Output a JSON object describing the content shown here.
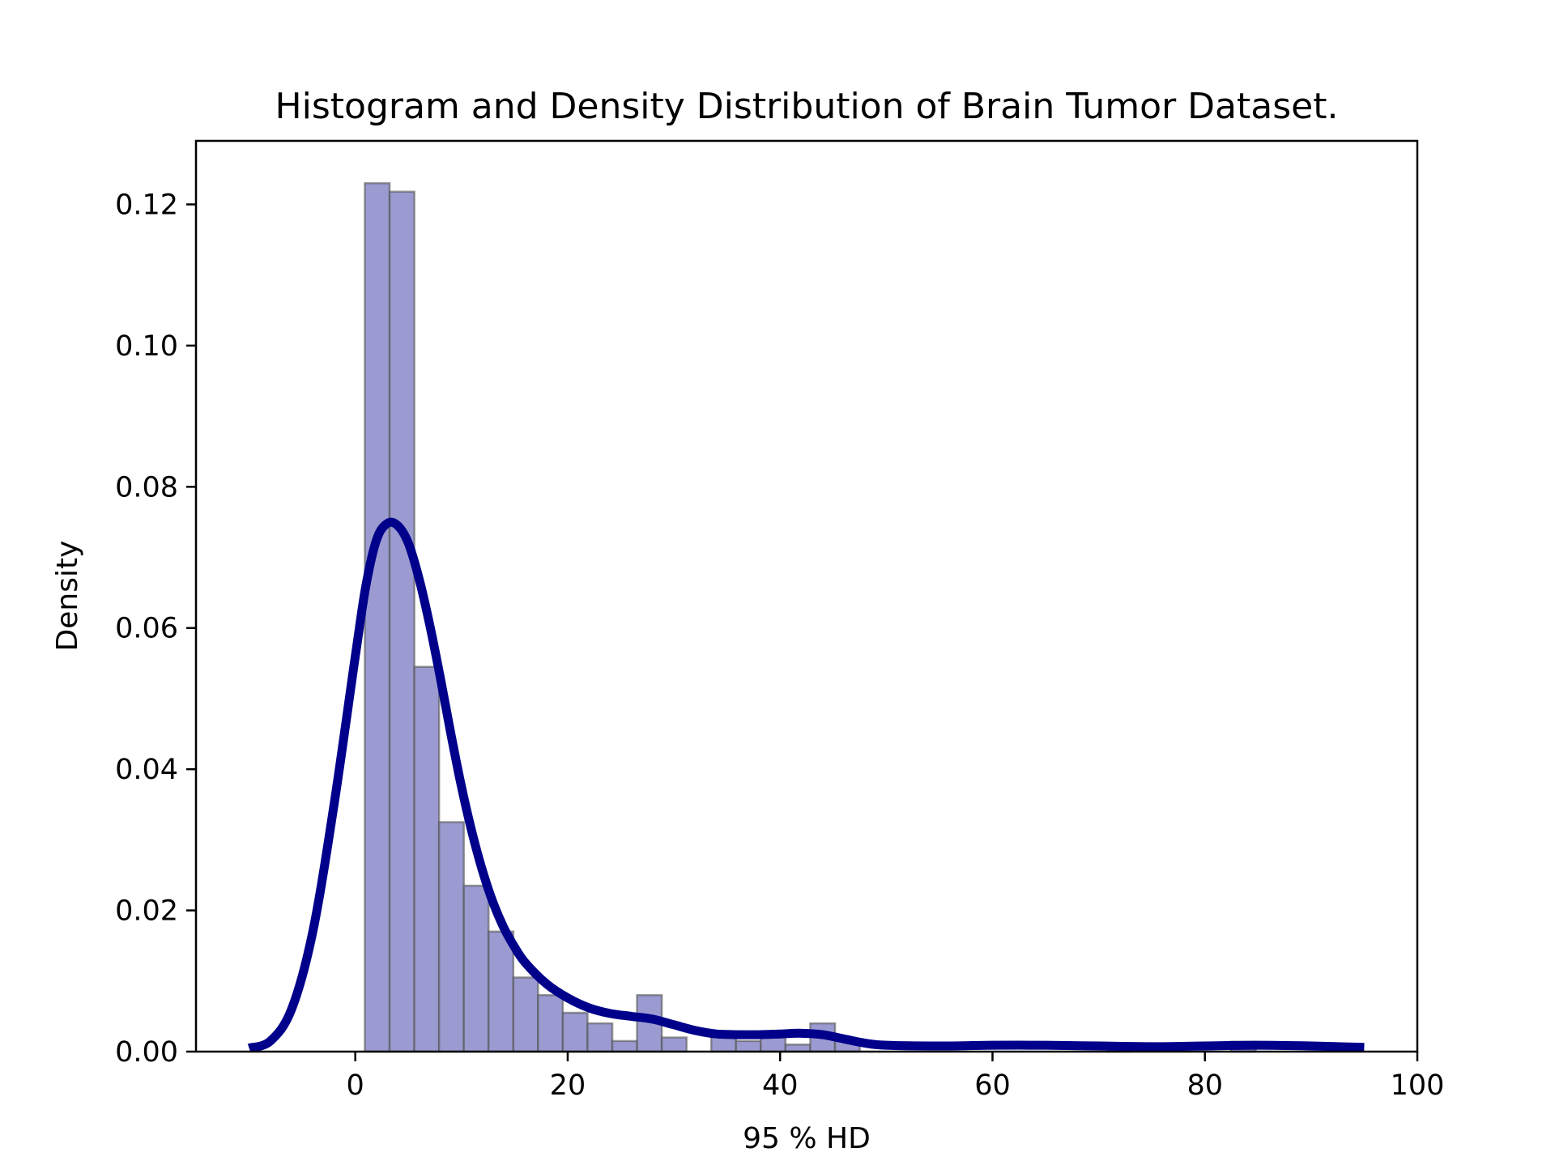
{
  "chart_data": {
    "type": "bar",
    "title": "Histogram and Density Distribution of Brain Tumor Dataset.",
    "xlabel": "95 % HD",
    "ylabel": "Density",
    "xlim": [
      -15,
      100
    ],
    "ylim": [
      0,
      0.129
    ],
    "grid": false,
    "legend": "none",
    "x_ticks": [
      0,
      20,
      40,
      60,
      80,
      100
    ],
    "x_tick_labels": [
      "0",
      "20",
      "40",
      "60",
      "80",
      "100"
    ],
    "y_ticks": [
      0,
      0.02,
      0.04,
      0.06,
      0.08,
      0.1,
      0.12
    ],
    "y_tick_labels": [
      "0.00",
      "0.02",
      "0.04",
      "0.06",
      "0.08",
      "0.10",
      "0.12"
    ],
    "histogram": {
      "bin_edges": [
        0.9,
        3.23,
        5.56,
        7.89,
        10.22,
        12.55,
        14.88,
        17.21,
        19.54,
        21.87,
        24.2,
        26.53,
        28.86,
        31.19,
        33.52,
        35.85,
        38.18,
        40.51,
        42.84,
        45.17,
        47.5,
        49.83,
        52.16,
        54.49,
        56.82,
        59.15,
        61.48,
        63.81,
        66.14,
        68.47,
        70.8,
        73.13,
        75.46,
        77.79,
        80.12,
        82.45,
        84.78,
        87.11,
        89.44,
        91.77,
        94.1
      ],
      "densities": [
        0.123,
        0.1218,
        0.0545,
        0.0325,
        0.0235,
        0.017,
        0.0105,
        0.008,
        0.0055,
        0.004,
        0.0015,
        0.008,
        0.002,
        0.0,
        0.0025,
        0.0015,
        0.002,
        0.001,
        0.004,
        0.0015,
        0.0,
        0.0,
        0.0,
        0.0,
        0.0,
        0.0,
        0.0,
        0.0,
        0.0,
        0.0,
        0.0012,
        0.0,
        0.0,
        0.0,
        0.0,
        0.0014,
        0.0,
        0.0,
        0.0,
        0.0
      ]
    },
    "density_curve": {
      "x": [
        -10,
        -8,
        -6,
        -4,
        -2,
        0,
        1,
        2,
        3,
        4,
        5,
        6,
        7,
        8,
        9,
        10,
        11,
        12,
        13,
        14,
        15,
        16,
        18,
        20,
        22,
        24,
        26,
        28,
        30,
        32,
        34,
        36,
        38,
        40,
        42,
        44,
        46,
        48,
        50,
        55,
        60,
        65,
        70,
        75,
        80,
        85,
        90,
        95
      ],
      "y": [
        0.0005,
        0.0015,
        0.006,
        0.017,
        0.035,
        0.056,
        0.066,
        0.0725,
        0.0748,
        0.0745,
        0.072,
        0.067,
        0.0605,
        0.053,
        0.045,
        0.0375,
        0.031,
        0.0255,
        0.021,
        0.0175,
        0.0148,
        0.0126,
        0.0096,
        0.0076,
        0.0062,
        0.0054,
        0.005,
        0.0046,
        0.0038,
        0.003,
        0.0025,
        0.0024,
        0.0024,
        0.0025,
        0.0026,
        0.0024,
        0.0018,
        0.0012,
        0.0009,
        0.0008,
        0.0009,
        0.0009,
        0.0008,
        0.0007,
        0.0008,
        0.0009,
        0.0008,
        0.0006
      ]
    },
    "colors": {
      "bar_fill": "#9b9bd2",
      "bar_edge": "#555555",
      "curve": "#00008b"
    }
  }
}
